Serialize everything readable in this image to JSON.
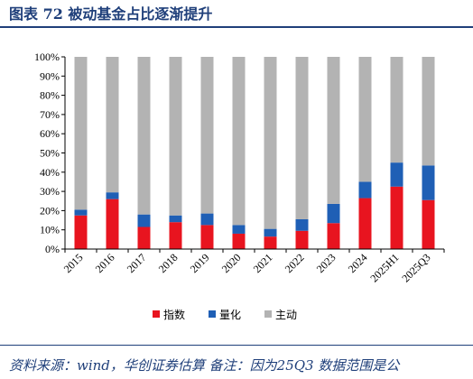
{
  "header": {
    "title": "图表 72    被动基金占比逐渐提升"
  },
  "footer": {
    "source": "资料来源：wind，华创证券估算  备注：因为25Q3 数据范围是公"
  },
  "colors": {
    "index": "#e8141f",
    "quant": "#1f5fb5",
    "active": "#b3b3b3",
    "text_blue": "#1f3f7a"
  },
  "chart_data": {
    "type": "bar",
    "stacked": true,
    "categories": [
      "2015",
      "2016",
      "2017",
      "2018",
      "2019",
      "2020",
      "2021",
      "2022",
      "2023",
      "2024",
      "2025H1",
      "2025Q3"
    ],
    "series": [
      {
        "name": "指数",
        "color": "#e8141f",
        "values": [
          17.5,
          26,
          11.5,
          14,
          12.5,
          8,
          6.5,
          9.5,
          13.5,
          26.5,
          32.5,
          25.5
        ]
      },
      {
        "name": "量化",
        "color": "#1f5fb5",
        "values": [
          3,
          3.5,
          6.5,
          3.5,
          6,
          4.5,
          4,
          6,
          10,
          8.5,
          12.5,
          18
        ]
      },
      {
        "name": "主动",
        "color": "#b3b3b3",
        "values": [
          79.5,
          70.5,
          82,
          82.5,
          81.5,
          87.5,
          89.5,
          84.5,
          76.5,
          65,
          55,
          56.5
        ]
      }
    ],
    "ylim": [
      0,
      100
    ],
    "yticks": [
      "0%",
      "10%",
      "20%",
      "30%",
      "40%",
      "50%",
      "60%",
      "70%",
      "80%",
      "90%",
      "100%"
    ],
    "legend": "bottom-center",
    "grid": false
  }
}
